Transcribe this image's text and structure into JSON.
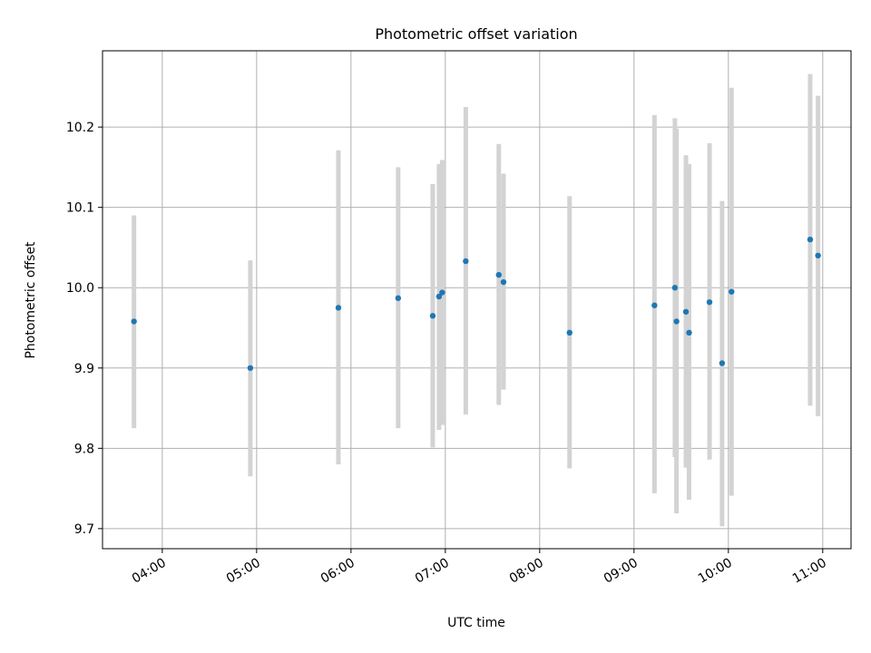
{
  "chart_data": {
    "type": "scatter",
    "title": "Photometric offset variation",
    "xlabel": "UTC time",
    "ylabel": "Photometric offset",
    "x_type": "time",
    "xlim": [
      "03:22",
      "11:18"
    ],
    "ylim": [
      9.675,
      10.295
    ],
    "x_ticks": [
      "04:00",
      "05:00",
      "06:00",
      "07:00",
      "08:00",
      "09:00",
      "10:00",
      "11:00"
    ],
    "y_ticks": [
      "9.7",
      "9.8",
      "9.9",
      "10.0",
      "10.1",
      "10.2"
    ],
    "grid": true,
    "colors": {
      "point": "#1f77b4",
      "errorbar": "#d3d3d3",
      "grid": "#b0b0b0"
    },
    "points": [
      {
        "x": "03:42",
        "y": 9.958,
        "low": 9.825,
        "high": 10.09
      },
      {
        "x": "04:56",
        "y": 9.9,
        "low": 9.765,
        "high": 10.034
      },
      {
        "x": "05:52",
        "y": 9.975,
        "low": 9.78,
        "high": 10.171
      },
      {
        "x": "06:30",
        "y": 9.987,
        "low": 9.825,
        "high": 10.15
      },
      {
        "x": "06:52",
        "y": 9.965,
        "low": 9.801,
        "high": 10.129
      },
      {
        "x": "06:56",
        "y": 9.989,
        "low": 9.823,
        "high": 10.154
      },
      {
        "x": "06:58",
        "y": 9.994,
        "low": 9.829,
        "high": 10.159
      },
      {
        "x": "07:13",
        "y": 10.033,
        "low": 9.842,
        "high": 10.225
      },
      {
        "x": "07:34",
        "y": 10.016,
        "low": 9.854,
        "high": 10.179
      },
      {
        "x": "07:37",
        "y": 10.007,
        "low": 9.873,
        "high": 10.142
      },
      {
        "x": "08:19",
        "y": 9.944,
        "low": 9.775,
        "high": 10.114
      },
      {
        "x": "09:13",
        "y": 9.978,
        "low": 9.744,
        "high": 10.215
      },
      {
        "x": "09:26",
        "y": 10.0,
        "low": 9.789,
        "high": 10.211
      },
      {
        "x": "09:27",
        "y": 9.958,
        "low": 9.719,
        "high": 10.198
      },
      {
        "x": "09:33",
        "y": 9.97,
        "low": 9.776,
        "high": 10.165
      },
      {
        "x": "09:35",
        "y": 9.944,
        "low": 9.736,
        "high": 10.154
      },
      {
        "x": "09:48",
        "y": 9.982,
        "low": 9.786,
        "high": 10.18
      },
      {
        "x": "09:56",
        "y": 9.906,
        "low": 9.703,
        "high": 10.108
      },
      {
        "x": "10:02",
        "y": 9.995,
        "low": 9.741,
        "high": 10.249
      },
      {
        "x": "10:52",
        "y": 10.06,
        "low": 9.853,
        "high": 10.266
      },
      {
        "x": "10:57",
        "y": 10.04,
        "low": 9.84,
        "high": 10.239
      }
    ]
  }
}
